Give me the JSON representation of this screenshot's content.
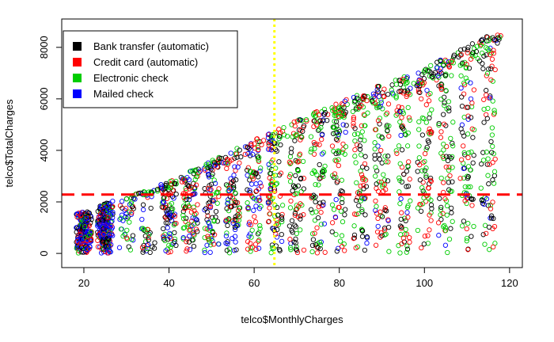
{
  "chart_data": {
    "type": "scatter",
    "title": "",
    "xlabel": "telco$MonthlyCharges",
    "ylabel": "telco$TotalCharges",
    "xlim": [
      14.8,
      123.0
    ],
    "ylim": [
      -550,
      9100
    ],
    "x_ticks": [
      20,
      40,
      60,
      80,
      100,
      120
    ],
    "y_ticks": [
      0,
      2000,
      4000,
      6000,
      8000
    ],
    "grid": false,
    "legend_position": "top-left",
    "series": [
      {
        "name": "Bank transfer (automatic)",
        "color": "#000000"
      },
      {
        "name": "Credit card (automatic)",
        "color": "#ff0000"
      },
      {
        "name": "Electronic check",
        "color": "#00cd00"
      },
      {
        "name": "Mailed check",
        "color": "#0000ff"
      }
    ],
    "marker": "open-circle",
    "data_summary": {
      "point_bands_monthly_charges": [
        19,
        20,
        21,
        24,
        25,
        26,
        30,
        35,
        40,
        45,
        50,
        55,
        60,
        65,
        70,
        75,
        80,
        85,
        90,
        95,
        100,
        105,
        110,
        115
      ],
      "upper_boundary_total_at_monthly": [
        [
          20,
          1600
        ],
        [
          26,
          2000
        ],
        [
          40,
          2800
        ],
        [
          60,
          4400
        ],
        [
          80,
          5900
        ],
        [
          100,
          7200
        ],
        [
          118,
          8700
        ]
      ]
    },
    "reference_lines": [
      {
        "orientation": "vertical",
        "value": 64.76,
        "color": "#ffff00",
        "style": "dotted"
      },
      {
        "orientation": "horizontal",
        "value": 2283.3,
        "color": "#ff0000",
        "style": "dashed"
      }
    ]
  }
}
